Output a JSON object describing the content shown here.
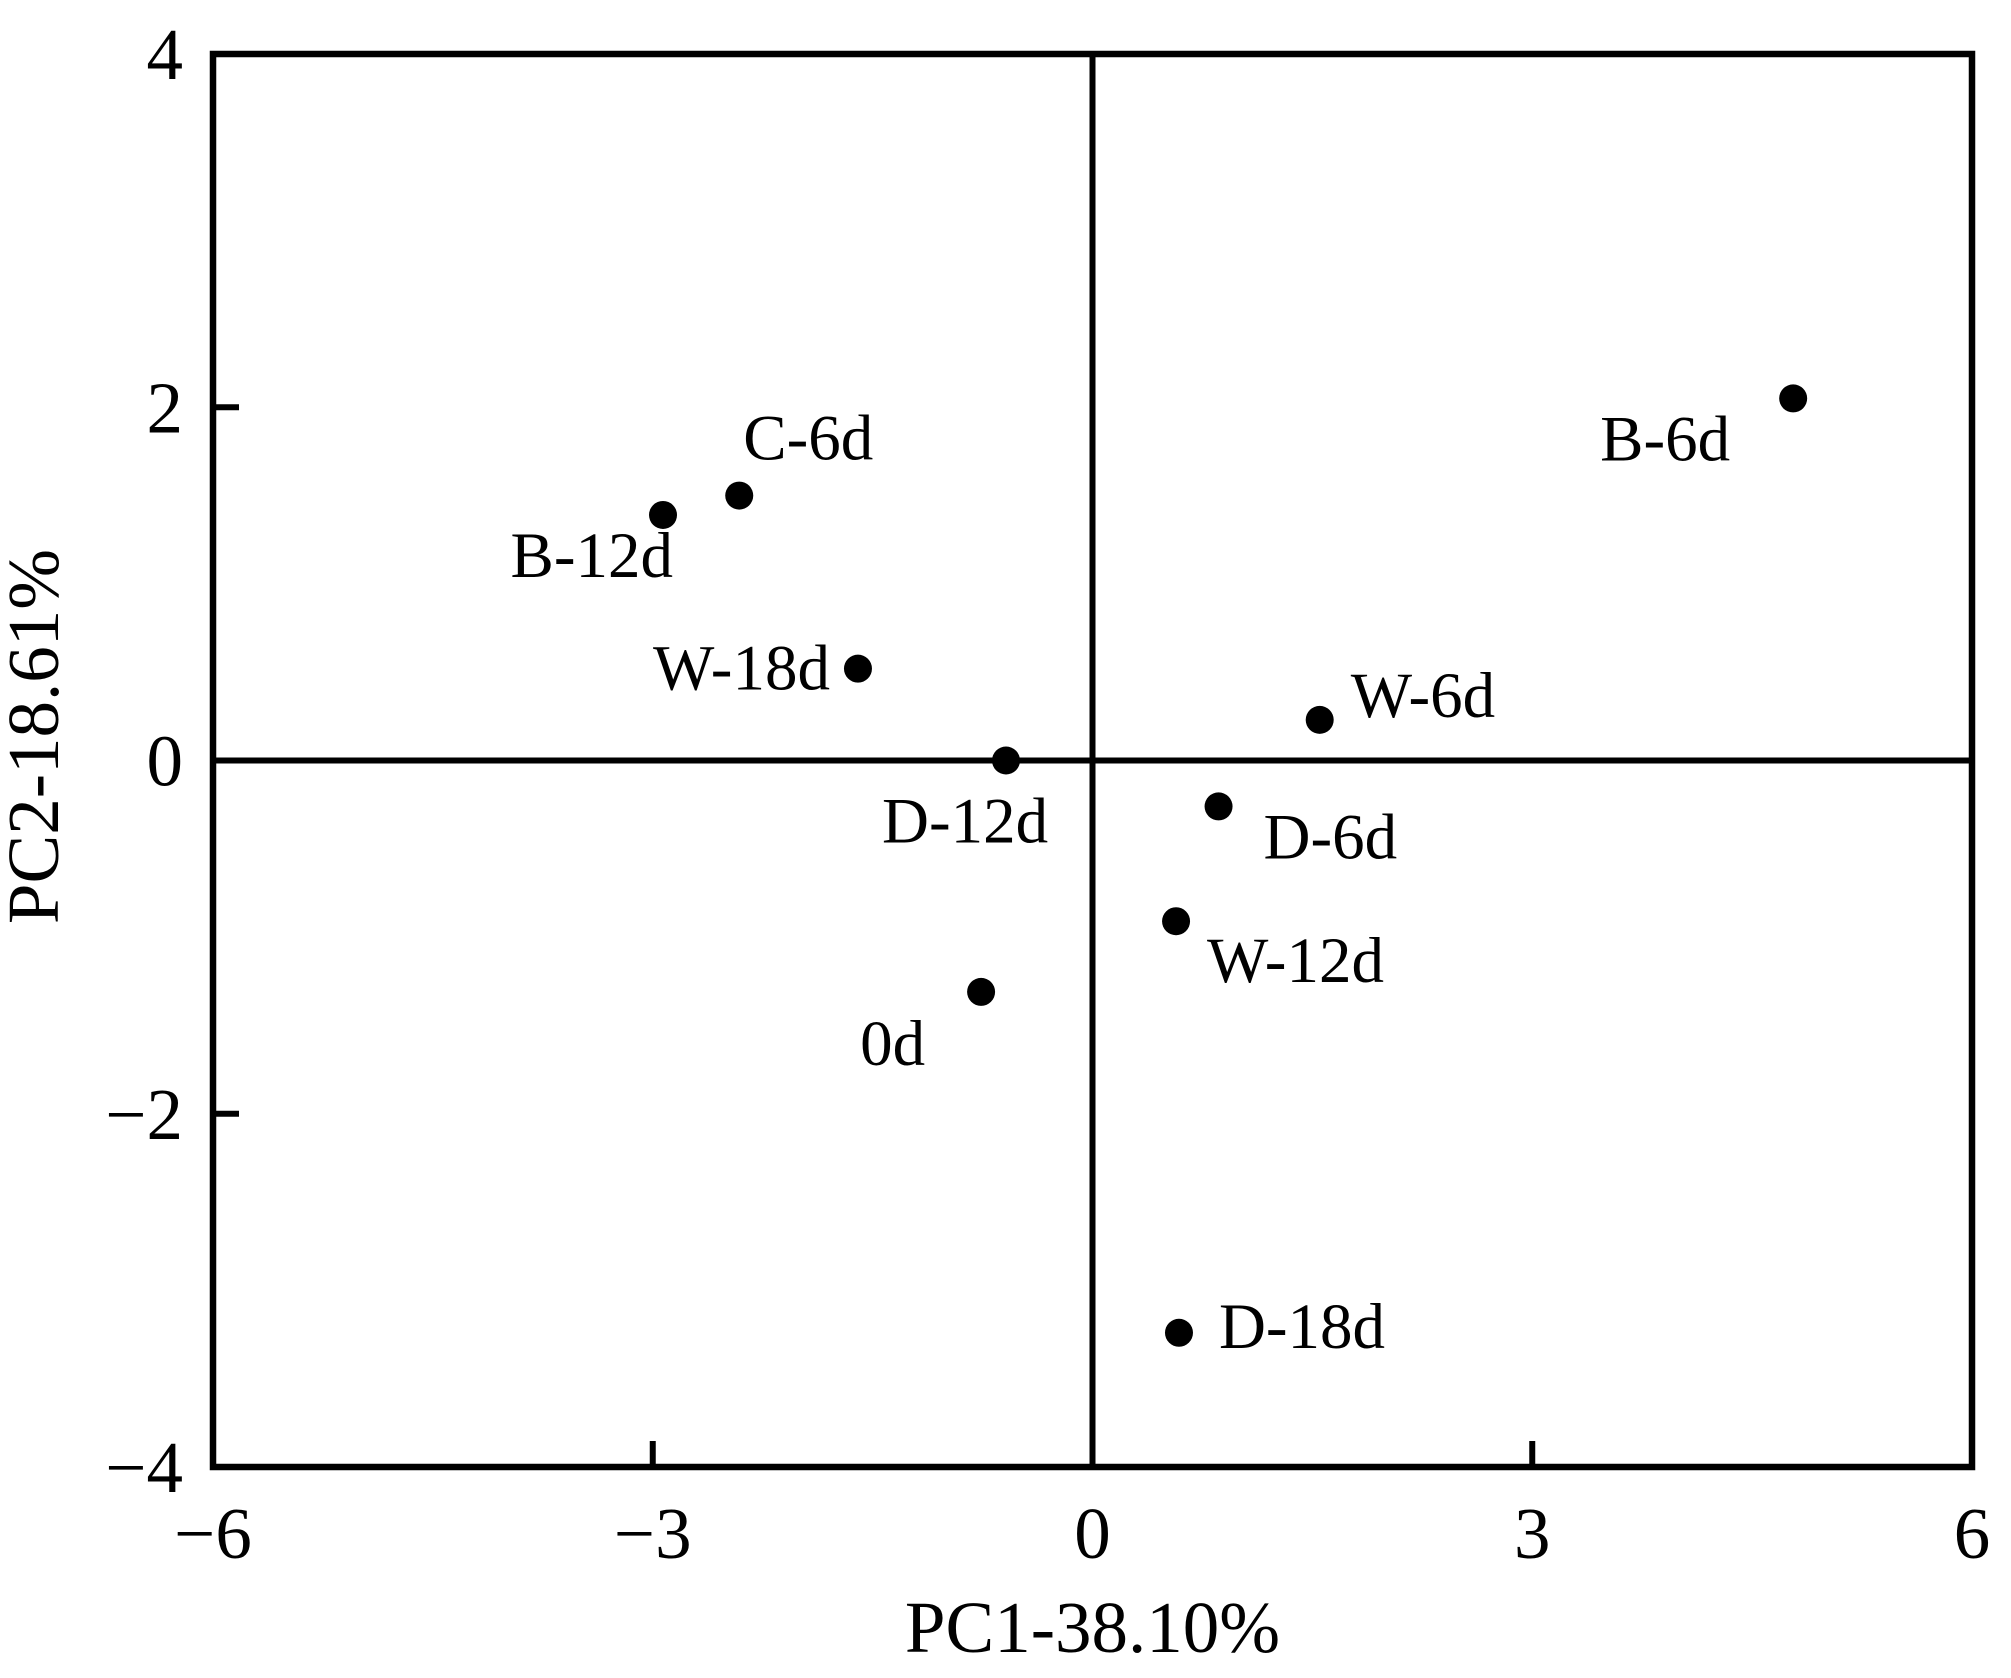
{
  "chart_data": {
    "type": "scatter",
    "xlabel": "PC1-38.10%",
    "ylabel": "PC2-18.61%",
    "xlim": [
      -6,
      6
    ],
    "ylim": [
      -4,
      4
    ],
    "xticks": [
      -6,
      -3,
      0,
      3,
      6
    ],
    "xtick_labels": [
      "−6",
      "−3",
      "0",
      "3",
      "6"
    ],
    "yticks": [
      4,
      2,
      0,
      -2,
      -4
    ],
    "ytick_labels": [
      "4",
      "2",
      "0",
      "−2",
      "−4"
    ],
    "reference_lines": {
      "x": 0,
      "y": 0
    },
    "grid": false,
    "legend": "none",
    "marker_color": "#000000",
    "points": [
      {
        "label": "B-6d",
        "x": 4.78,
        "y": 2.05
      },
      {
        "label": "C-6d",
        "x": -2.41,
        "y": 1.5
      },
      {
        "label": "B-12d",
        "x": -2.93,
        "y": 1.39
      },
      {
        "label": "W-18d",
        "x": -1.6,
        "y": 0.52
      },
      {
        "label": "D-12d",
        "x": -0.59,
        "y": 0.0
      },
      {
        "label": "W-6d",
        "x": 1.55,
        "y": 0.23
      },
      {
        "label": "D-6d",
        "x": 0.86,
        "y": -0.26
      },
      {
        "label": "W-12d",
        "x": 0.57,
        "y": -0.91
      },
      {
        "label": "0d",
        "x": -0.76,
        "y": -1.31
      },
      {
        "label": "D-18d",
        "x": 0.59,
        "y": -3.24
      }
    ]
  }
}
